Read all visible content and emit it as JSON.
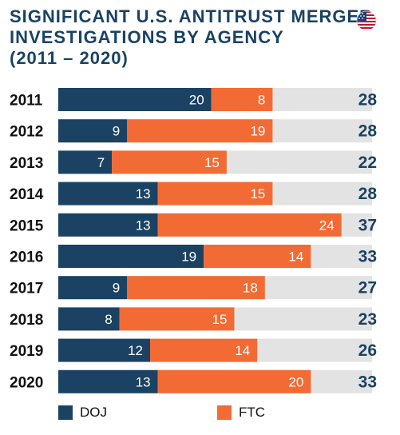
{
  "title_lines": [
    "SIGNIFICANT U.S. ANTITRUST MERGER",
    "INVESTIGATIONS BY AGENCY",
    "(2011 – 2020)"
  ],
  "flag_icon": "us-flag-icon",
  "colors": {
    "doj": "#1b4263",
    "ftc": "#f26b35",
    "track": "#e3e3e3",
    "title": "#1b4263",
    "total": "#1b4263"
  },
  "legend": [
    {
      "label": "DOJ",
      "series": "doj"
    },
    {
      "label": "FTC",
      "series": "ftc"
    }
  ],
  "chart_data": {
    "type": "bar",
    "orientation": "horizontal",
    "stacked": true,
    "categories": [
      "2011",
      "2012",
      "2013",
      "2014",
      "2015",
      "2016",
      "2017",
      "2018",
      "2019",
      "2020"
    ],
    "series": [
      {
        "name": "DOJ",
        "values": [
          20,
          9,
          7,
          13,
          13,
          19,
          9,
          8,
          12,
          13
        ]
      },
      {
        "name": "FTC",
        "values": [
          8,
          19,
          15,
          15,
          24,
          14,
          18,
          15,
          14,
          20
        ]
      }
    ],
    "totals": [
      28,
      28,
      22,
      28,
      37,
      33,
      27,
      23,
      26,
      33
    ],
    "xlim": [
      0,
      41
    ],
    "legend_position": "bottom-left",
    "grid": false
  }
}
